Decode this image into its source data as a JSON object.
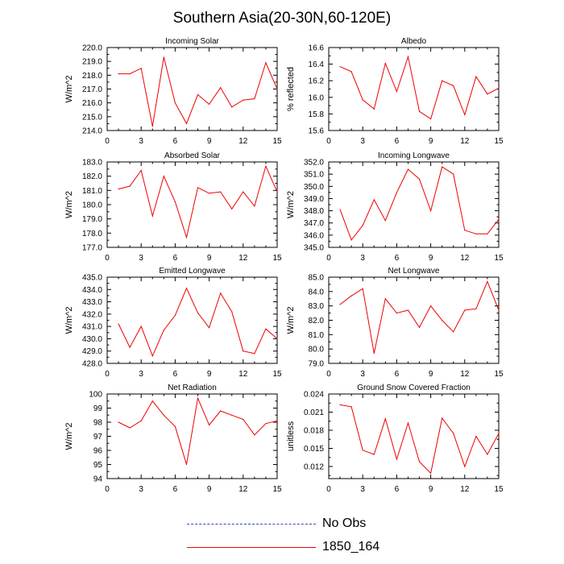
{
  "title": "Southern Asia(20-30N,60-120E)",
  "legend": [
    {
      "label": "No Obs",
      "color": "#3344bb",
      "style": "dashed"
    },
    {
      "label": "1850_164",
      "color": "#ee0000",
      "style": "solid"
    }
  ],
  "chart_data": [
    {
      "type": "line",
      "title": "Incoming Solar",
      "xlabel": "",
      "ylabel": "W/m^2",
      "xlim": [
        0,
        15
      ],
      "xticks": [
        0,
        3,
        6,
        9,
        12,
        15
      ],
      "ylim": [
        214.0,
        220.0
      ],
      "yticks": [
        "214.0",
        "215.0",
        "216.0",
        "217.0",
        "218.0",
        "219.0",
        "220.0"
      ],
      "series": [
        {
          "color": "#ee0000",
          "x": [
            1,
            2,
            3,
            4,
            5,
            6,
            7,
            8,
            9,
            10,
            11,
            12,
            13,
            14,
            15
          ],
          "values": [
            218.1,
            218.1,
            218.5,
            214.3,
            219.3,
            216.0,
            214.5,
            216.6,
            215.9,
            217.1,
            215.7,
            216.2,
            216.3,
            218.9,
            217.0
          ]
        }
      ]
    },
    {
      "type": "line",
      "title": "Albedo",
      "xlabel": "",
      "ylabel": "% reflected",
      "xlim": [
        0,
        15
      ],
      "xticks": [
        0,
        3,
        6,
        9,
        12,
        15
      ],
      "ylim": [
        15.6,
        16.6
      ],
      "yticks": [
        "15.6",
        "15.8",
        "16.0",
        "16.2",
        "16.4",
        "16.6"
      ],
      "series": [
        {
          "color": "#ee0000",
          "x": [
            1,
            2,
            3,
            4,
            5,
            6,
            7,
            8,
            9,
            10,
            11,
            12,
            13,
            14,
            15
          ],
          "values": [
            16.37,
            16.31,
            15.97,
            15.86,
            16.41,
            16.07,
            16.49,
            15.83,
            15.74,
            16.2,
            16.14,
            15.79,
            16.25,
            16.04,
            16.11
          ]
        }
      ]
    },
    {
      "type": "line",
      "title": "Absorbed Solar",
      "xlabel": "",
      "ylabel": "W/m^2",
      "xlim": [
        0,
        15
      ],
      "xticks": [
        0,
        3,
        6,
        9,
        12,
        15
      ],
      "ylim": [
        177.0,
        183.0
      ],
      "yticks": [
        "177.0",
        "178.0",
        "179.0",
        "180.0",
        "181.0",
        "182.0",
        "183.0"
      ],
      "series": [
        {
          "color": "#ee0000",
          "x": [
            1,
            2,
            3,
            4,
            5,
            6,
            7,
            8,
            9,
            10,
            11,
            12,
            13,
            14,
            15
          ],
          "values": [
            181.1,
            181.3,
            182.4,
            179.2,
            182.0,
            180.2,
            177.7,
            181.2,
            180.8,
            180.9,
            179.7,
            180.9,
            179.9,
            182.7,
            180.9
          ]
        }
      ]
    },
    {
      "type": "line",
      "title": "Incoming Longwave",
      "xlabel": "",
      "ylabel": "W/m^2",
      "xlim": [
        0,
        15
      ],
      "xticks": [
        0,
        3,
        6,
        9,
        12,
        15
      ],
      "ylim": [
        345.0,
        352.0
      ],
      "yticks": [
        "345.0",
        "346.0",
        "347.0",
        "348.0",
        "349.0",
        "350.0",
        "351.0",
        "352.0"
      ],
      "series": [
        {
          "color": "#ee0000",
          "x": [
            1,
            2,
            3,
            4,
            5,
            6,
            7,
            8,
            9,
            10,
            11,
            12,
            13,
            14,
            15
          ],
          "values": [
            348.1,
            345.6,
            346.8,
            348.9,
            347.2,
            349.5,
            351.4,
            350.6,
            348.0,
            351.6,
            351.0,
            346.4,
            346.1,
            346.1,
            347.3
          ]
        }
      ]
    },
    {
      "type": "line",
      "title": "Emitted Longwave",
      "xlabel": "",
      "ylabel": "W/m^2",
      "xlim": [
        0,
        15
      ],
      "xticks": [
        0,
        3,
        6,
        9,
        12,
        15
      ],
      "ylim": [
        428.0,
        435.0
      ],
      "yticks": [
        "428.0",
        "429.0",
        "430.0",
        "431.0",
        "432.0",
        "433.0",
        "434.0",
        "435.0"
      ],
      "series": [
        {
          "color": "#ee0000",
          "x": [
            1,
            2,
            3,
            4,
            5,
            6,
            7,
            8,
            9,
            10,
            11,
            12,
            13,
            14,
            15
          ],
          "values": [
            431.2,
            429.3,
            431.0,
            428.6,
            430.7,
            431.9,
            434.1,
            432.1,
            430.9,
            433.7,
            432.2,
            429.0,
            428.8,
            430.8,
            430.0
          ]
        }
      ]
    },
    {
      "type": "line",
      "title": "Net Longwave",
      "xlabel": "",
      "ylabel": "W/m^2",
      "xlim": [
        0,
        15
      ],
      "xticks": [
        0,
        3,
        6,
        9,
        12,
        15
      ],
      "ylim": [
        79.0,
        85.0
      ],
      "yticks": [
        "79.0",
        "80.0",
        "81.0",
        "82.0",
        "83.0",
        "84.0",
        "85.0"
      ],
      "series": [
        {
          "color": "#ee0000",
          "x": [
            1,
            2,
            3,
            4,
            5,
            6,
            7,
            8,
            9,
            10,
            11,
            12,
            13,
            14,
            15
          ],
          "values": [
            83.1,
            83.7,
            84.2,
            79.7,
            83.5,
            82.5,
            82.7,
            81.5,
            83.0,
            82.0,
            81.2,
            82.7,
            82.8,
            84.7,
            82.7
          ]
        }
      ]
    },
    {
      "type": "line",
      "title": "Net Radiation",
      "xlabel": "",
      "ylabel": "W/m^2",
      "xlim": [
        0,
        15
      ],
      "xticks": [
        0,
        3,
        6,
        9,
        12,
        15
      ],
      "ylim": [
        94,
        100
      ],
      "yticks": [
        "94",
        "95",
        "96",
        "97",
        "98",
        "99",
        "100"
      ],
      "series": [
        {
          "color": "#ee0000",
          "x": [
            1,
            2,
            3,
            4,
            5,
            6,
            7,
            8,
            9,
            10,
            11,
            12,
            13,
            14,
            15
          ],
          "values": [
            98.0,
            97.6,
            98.1,
            99.5,
            98.5,
            97.7,
            95.0,
            99.7,
            97.8,
            98.8,
            98.5,
            98.2,
            97.1,
            97.9,
            98.1
          ]
        }
      ]
    },
    {
      "type": "line",
      "title": "Ground Snow Covered Fraction",
      "xlabel": "",
      "ylabel": "unitless",
      "xlim": [
        0,
        15
      ],
      "xticks": [
        0,
        3,
        6,
        9,
        12,
        15
      ],
      "ylim": [
        0.01,
        0.024
      ],
      "yticks": [
        "0.012",
        "0.015",
        "0.018",
        "0.021",
        "0.024"
      ],
      "series": [
        {
          "color": "#ee0000",
          "x": [
            1,
            2,
            3,
            4,
            5,
            6,
            7,
            8,
            9,
            10,
            11,
            12,
            13,
            14,
            15
          ],
          "values": [
            0.0222,
            0.0219,
            0.0147,
            0.014,
            0.0199,
            0.0132,
            0.0192,
            0.0128,
            0.0109,
            0.02,
            0.0175,
            0.012,
            0.017,
            0.014,
            0.0175
          ]
        }
      ]
    }
  ]
}
